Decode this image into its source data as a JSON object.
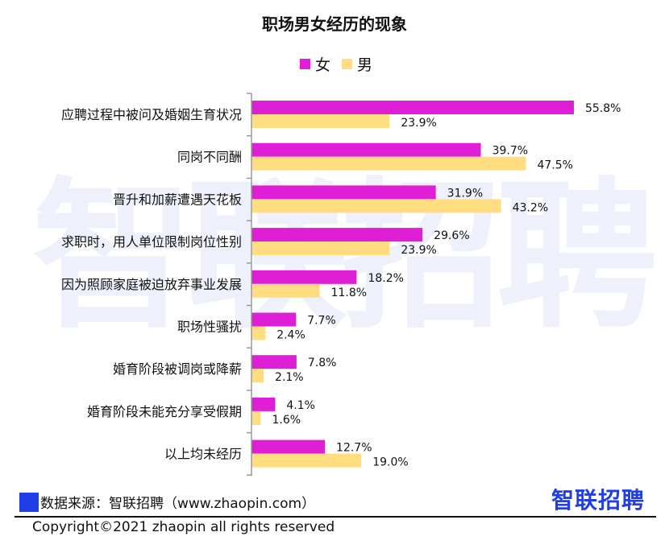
{
  "watermark": "智联招聘",
  "brand": "智联招聘",
  "source": "数据来源：智联招聘（www.zhaopin.com）",
  "copyright": "Copyright©2021 zhaopin all rights reserved",
  "colors": {
    "female": "#df1fd6",
    "male": "#ffdd80",
    "axis": "#999999",
    "source_badge": "#1f3ee8"
  },
  "chart_data": {
    "type": "bar",
    "orientation": "horizontal",
    "title": "职场男女经历的现象",
    "legend_position": "top",
    "categories": [
      "应聘过程中被问及婚姻生育状况",
      "同岗不同酬",
      "晋升和加薪遭遇天花板",
      "求职时，用人单位限制岗位性别",
      "因为照顾家庭被迫放弃事业发展",
      "职场性骚扰",
      "婚育阶段被调岗或降薪",
      "婚育阶段未能充分享受假期",
      "以上均未经历"
    ],
    "series": [
      {
        "name": "女",
        "values": [
          55.8,
          39.7,
          31.9,
          29.6,
          18.2,
          7.7,
          7.8,
          4.1,
          12.7
        ],
        "labels": [
          "55.8%",
          "39.7%",
          "31.9%",
          "29.6%",
          "18.2%",
          "7.7%",
          "7.8%",
          "4.1%",
          "12.7%"
        ]
      },
      {
        "name": "男",
        "values": [
          23.9,
          47.5,
          43.2,
          23.9,
          11.8,
          2.4,
          2.1,
          1.6,
          19.0
        ],
        "labels": [
          "23.9%",
          "47.5%",
          "43.2%",
          "23.9%",
          "11.8%",
          "2.4%",
          "2.1%",
          "1.6%",
          "19.0%"
        ]
      }
    ],
    "xlim": [
      0,
      60
    ],
    "grid": false
  }
}
